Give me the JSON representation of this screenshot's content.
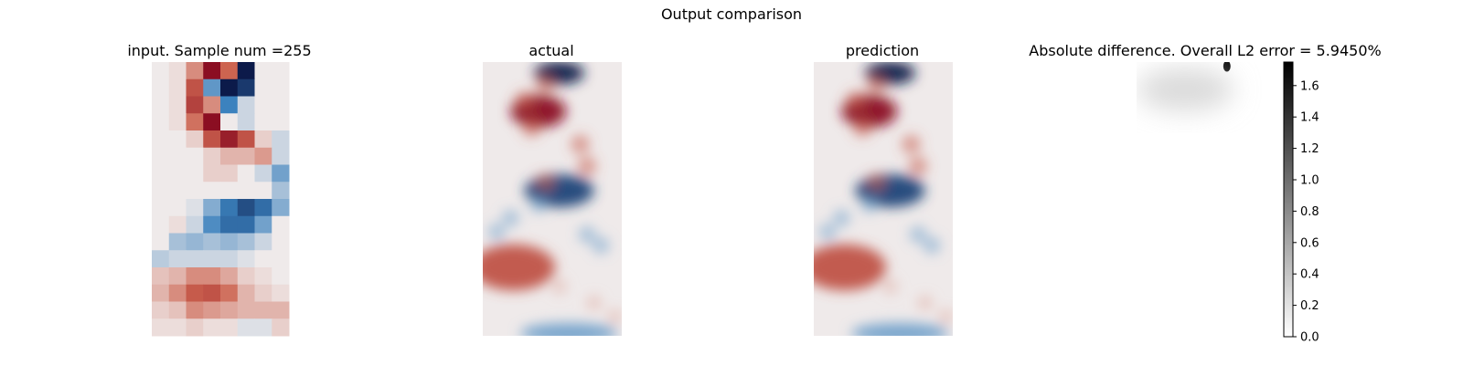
{
  "figure": {
    "suptitle": "Output comparison"
  },
  "panels": [
    {
      "id": "input",
      "title": "input. Sample num =255"
    },
    {
      "id": "actual",
      "title": "actual"
    },
    {
      "id": "prediction",
      "title": "prediction"
    },
    {
      "id": "difference",
      "title": "Absolute difference. Overall L2 error = 5.9450%"
    }
  ],
  "colors": {
    "positive": "#8b0e22",
    "negative": "#0c1a4a",
    "neutral": "#efeaea",
    "difference_max": "#000000",
    "difference_min": "#ffffff"
  },
  "chart_data": [
    {
      "type": "heatmap",
      "title": "input. Sample num =255",
      "colormap": "diverging red-blue",
      "grid": {
        "rows": 16,
        "cols": 8
      },
      "values": [
        [
          0.0,
          0.05,
          0.35,
          1.0,
          0.5,
          -1.0,
          0.0,
          0.0
        ],
        [
          0.0,
          0.05,
          0.6,
          -0.4,
          -1.0,
          -0.85,
          0.0,
          0.0
        ],
        [
          0.0,
          0.05,
          0.7,
          0.35,
          -0.5,
          -0.1,
          0.0,
          0.0
        ],
        [
          0.0,
          0.05,
          0.45,
          1.0,
          0.0,
          -0.1,
          0.0,
          0.0
        ],
        [
          0.0,
          0.0,
          0.1,
          0.6,
          0.9,
          0.6,
          0.1,
          -0.1
        ],
        [
          0.0,
          0.0,
          0.0,
          0.1,
          0.2,
          0.2,
          0.3,
          -0.1
        ],
        [
          0.0,
          0.0,
          0.0,
          0.1,
          0.1,
          0.0,
          -0.1,
          -0.35
        ],
        [
          0.0,
          0.0,
          0.0,
          0.0,
          0.0,
          0.0,
          0.0,
          -0.2
        ],
        [
          0.0,
          0.0,
          -0.05,
          -0.3,
          -0.55,
          -0.75,
          -0.6,
          -0.3
        ],
        [
          0.0,
          0.05,
          -0.1,
          -0.45,
          -0.6,
          -0.6,
          -0.35,
          0.0
        ],
        [
          0.0,
          -0.2,
          -0.25,
          -0.2,
          -0.25,
          -0.2,
          -0.1,
          0.0
        ],
        [
          -0.15,
          -0.1,
          -0.1,
          -0.1,
          -0.1,
          -0.05,
          0.0,
          0.0
        ],
        [
          0.15,
          0.2,
          0.35,
          0.35,
          0.25,
          0.1,
          0.05,
          0.0
        ],
        [
          0.2,
          0.35,
          0.55,
          0.6,
          0.45,
          0.2,
          0.1,
          0.05
        ],
        [
          0.1,
          0.15,
          0.35,
          0.3,
          0.25,
          0.2,
          0.2,
          0.2
        ],
        [
          0.05,
          0.05,
          0.1,
          0.05,
          0.05,
          -0.05,
          -0.05,
          0.1
        ]
      ]
    },
    {
      "type": "heatmap",
      "title": "actual",
      "colormap": "diverging red-blue",
      "features": [
        {
          "kind": "vortex",
          "sign": -1,
          "cx": 0.55,
          "cy": 0.04,
          "rx": 0.18,
          "ry": 0.035,
          "strength": 1.0
        },
        {
          "kind": "vortex",
          "sign": 1,
          "cx": 0.4,
          "cy": 0.18,
          "rx": 0.2,
          "ry": 0.05,
          "strength": 1.0
        },
        {
          "kind": "vortex",
          "sign": -1,
          "cx": 0.55,
          "cy": 0.47,
          "rx": 0.25,
          "ry": 0.05,
          "strength": 0.8
        },
        {
          "kind": "vortex",
          "sign": 1,
          "cx": 0.22,
          "cy": 0.75,
          "rx": 0.3,
          "ry": 0.07,
          "strength": 0.6
        },
        {
          "kind": "vortex",
          "sign": -1,
          "cx": 0.62,
          "cy": 0.99,
          "rx": 0.35,
          "ry": 0.03,
          "strength": 0.35
        }
      ]
    },
    {
      "type": "heatmap",
      "title": "prediction",
      "colormap": "diverging red-blue",
      "features": [
        {
          "kind": "vortex",
          "sign": -1,
          "cx": 0.55,
          "cy": 0.04,
          "rx": 0.18,
          "ry": 0.035,
          "strength": 1.0
        },
        {
          "kind": "vortex",
          "sign": 1,
          "cx": 0.4,
          "cy": 0.18,
          "rx": 0.2,
          "ry": 0.05,
          "strength": 1.0
        },
        {
          "kind": "vortex",
          "sign": -1,
          "cx": 0.55,
          "cy": 0.47,
          "rx": 0.25,
          "ry": 0.05,
          "strength": 0.8
        },
        {
          "kind": "vortex",
          "sign": 1,
          "cx": 0.22,
          "cy": 0.75,
          "rx": 0.3,
          "ry": 0.07,
          "strength": 0.6
        },
        {
          "kind": "vortex",
          "sign": -1,
          "cx": 0.62,
          "cy": 0.99,
          "rx": 0.35,
          "ry": 0.03,
          "strength": 0.35
        }
      ]
    },
    {
      "type": "heatmap",
      "title": "Absolute difference. Overall L2 error = 5.9450%",
      "colormap": "greys",
      "colorbar": {
        "min": 0.0,
        "max": 1.75,
        "ticks": [
          "0.0",
          "0.2",
          "0.4",
          "0.6",
          "0.8",
          "1.0",
          "1.2",
          "1.4",
          "1.6"
        ]
      },
      "features": [
        {
          "kind": "spot",
          "cx": 0.65,
          "cy": 0.015,
          "value": 1.7
        },
        {
          "kind": "haze",
          "cx": 0.35,
          "cy": 0.1,
          "value": 0.08
        }
      ]
    }
  ]
}
